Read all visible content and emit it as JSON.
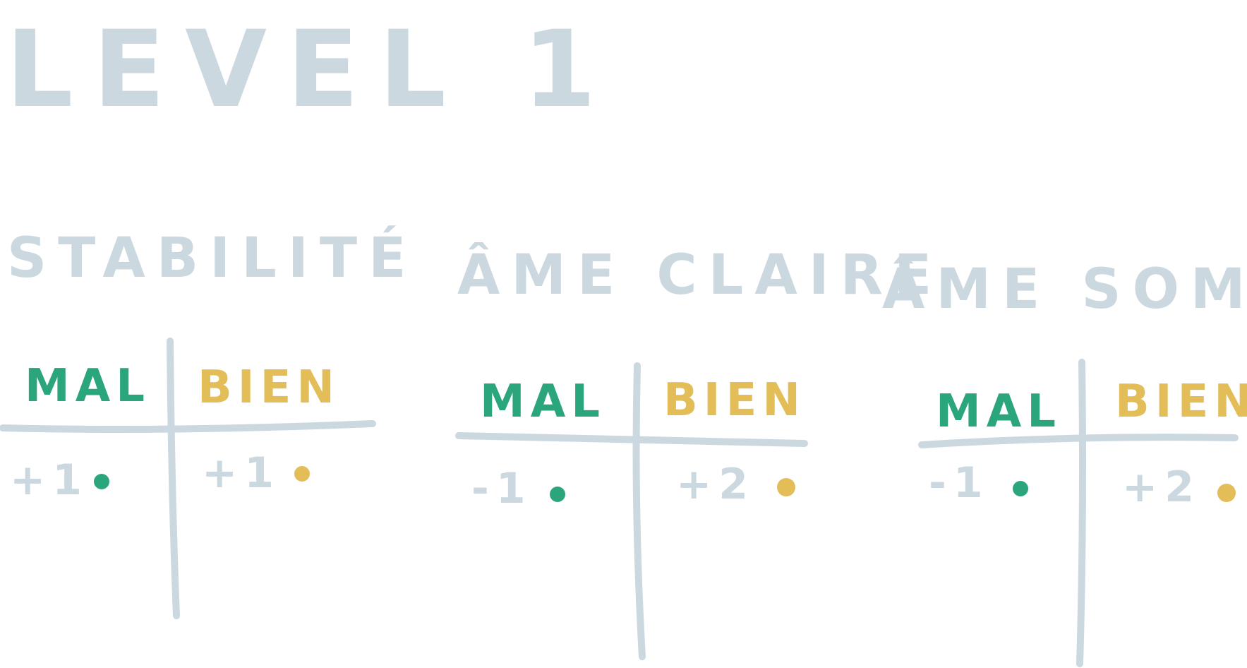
{
  "title": "LEVEL 1",
  "colors": {
    "ink": "#ccd8e0",
    "mal": "#2aa57c",
    "bien": "#e2bd58"
  },
  "tables": [
    {
      "category": "STABILITÉ",
      "mal": {
        "label": "MAL",
        "score": "+1"
      },
      "bien": {
        "label": "BIEN",
        "score": "+1"
      }
    },
    {
      "category": "ÂME CLAIRE",
      "mal": {
        "label": "MAL",
        "score": "-1"
      },
      "bien": {
        "label": "BIEN",
        "score": "+2"
      }
    },
    {
      "category": "ÂME SOMBRE",
      "mal": {
        "label": "MAL",
        "score": "-1"
      },
      "bien": {
        "label": "BIEN",
        "score": "+2"
      }
    }
  ]
}
